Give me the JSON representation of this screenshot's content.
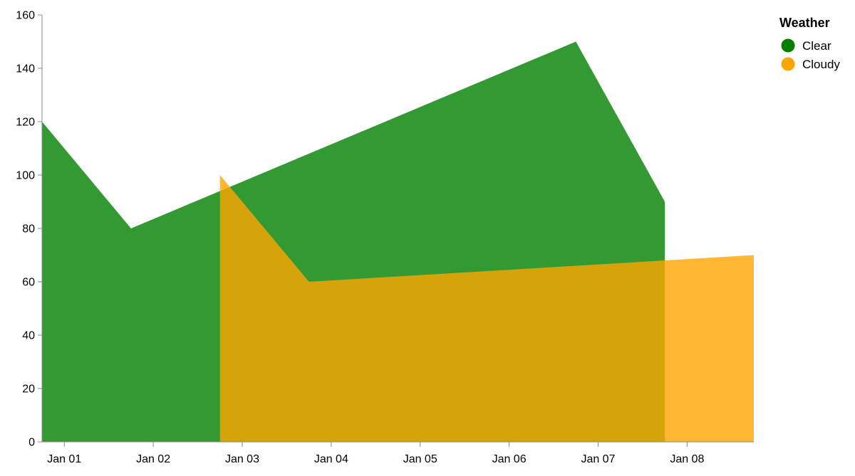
{
  "chart_data": {
    "type": "area",
    "title": "",
    "xlabel": "",
    "ylabel": "",
    "ylim": [
      0,
      160
    ],
    "yticks": [
      0,
      20,
      40,
      60,
      80,
      100,
      120,
      140,
      160
    ],
    "xticks": [
      "Jan 01",
      "Jan 02",
      "Jan 03",
      "Jan 04",
      "Jan 05",
      "Jan 06",
      "Jan 07",
      "Jan 08"
    ],
    "xlim": [
      "2023-12-31T18:00",
      "2024-01-08T18:00"
    ],
    "grid": false,
    "stacked": false,
    "legend": {
      "title": "Weather",
      "position": "top-right"
    },
    "series": [
      {
        "name": "Clear",
        "color": "#008000",
        "opacity": 0.8,
        "points": [
          {
            "x": "2023-12-31T18:00",
            "y": 120
          },
          {
            "x": "2024-01-01T18:00",
            "y": 80
          },
          {
            "x": "2024-01-06T18:00",
            "y": 150
          },
          {
            "x": "2024-01-07T18:00",
            "y": 90
          }
        ]
      },
      {
        "name": "Cloudy",
        "color": "#ffa500",
        "opacity": 0.8,
        "points": [
          {
            "x": "2024-01-02T18:00",
            "y": 100
          },
          {
            "x": "2024-01-03T18:00",
            "y": 60
          },
          {
            "x": "2024-01-08T18:00",
            "y": 70
          }
        ]
      }
    ]
  }
}
